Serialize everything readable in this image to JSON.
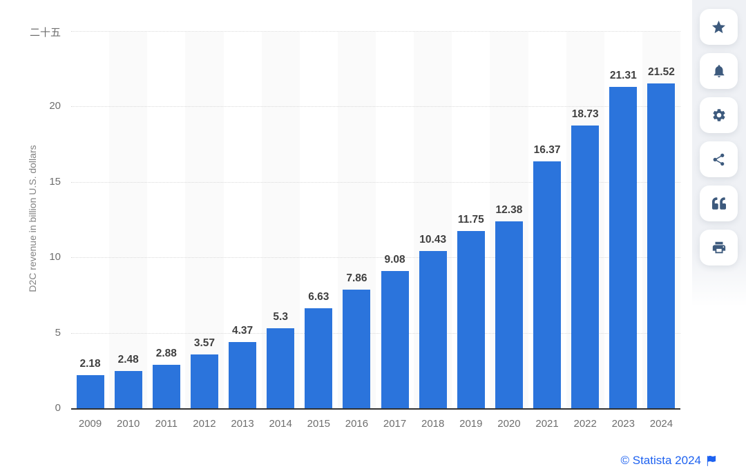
{
  "chart_data": {
    "type": "bar",
    "title": "",
    "categories": [
      "2009",
      "2010",
      "2011",
      "2012",
      "2013",
      "2014",
      "2015",
      "2016",
      "2017",
      "2018",
      "2019",
      "2020",
      "2021",
      "2022",
      "2023",
      "2024"
    ],
    "values": [
      2.18,
      2.48,
      2.88,
      3.57,
      4.37,
      5.3,
      6.63,
      7.86,
      9.08,
      10.43,
      11.75,
      12.38,
      16.37,
      18.73,
      21.31,
      21.52
    ],
    "value_labels": [
      "2.18",
      "2.48",
      "2.88",
      "3.57",
      "4.37",
      "5.3",
      "6.63",
      "7.86",
      "9.08",
      "10.43",
      "11.75",
      "12.38",
      "16.37",
      "18.73",
      "21.31",
      "21.52"
    ],
    "xlabel": "",
    "ylabel": "D2C revenue in billion U.S. dollars",
    "ylim": [
      0,
      25
    ],
    "yticks": [
      {
        "value": 0,
        "label": "0"
      },
      {
        "value": 5,
        "label": "5"
      },
      {
        "value": 10,
        "label": "10"
      },
      {
        "value": 15,
        "label": "15"
      },
      {
        "value": 20,
        "label": "20"
      },
      {
        "value": 25,
        "label": "二十五"
      }
    ],
    "grid": "horizontal-dotted",
    "legend": "none",
    "plot_bands": "alternating columns on even years",
    "bar_color": "#2b74dc"
  },
  "toolbar": {
    "buttons": [
      {
        "name": "favorite",
        "icon": "star-icon"
      },
      {
        "name": "notifications",
        "icon": "bell-icon"
      },
      {
        "name": "settings",
        "icon": "gear-icon"
      },
      {
        "name": "share",
        "icon": "share-icon"
      },
      {
        "name": "cite",
        "icon": "quote-icon"
      },
      {
        "name": "print",
        "icon": "printer-icon"
      }
    ]
  },
  "footer": {
    "copyright": "© Statista 2024"
  },
  "colors": {
    "bar": "#2b74dc",
    "toolbar_icon": "#3d5a7d",
    "link": "#1e62f0",
    "plot_band": "#fafafa",
    "gridline": "#d9d9d9",
    "axis_line": "#303030",
    "tick_text": "#6e6e6e",
    "value_text": "#3f3f3f"
  }
}
